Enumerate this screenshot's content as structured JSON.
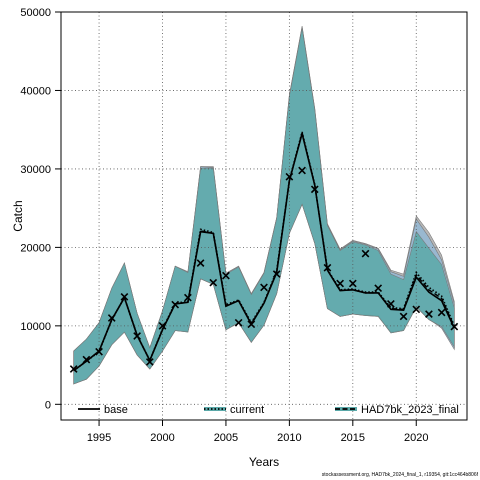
{
  "chart_data": {
    "type": "line",
    "xlabel": "Years",
    "ylabel": "Catch",
    "xlim": [
      1992,
      2024
    ],
    "ylim": [
      -2000,
      50000
    ],
    "x_ticks": [
      1995,
      2000,
      2005,
      2010,
      2015,
      2020
    ],
    "y_ticks": [
      0,
      10000,
      20000,
      30000,
      40000,
      50000
    ],
    "grid": true,
    "legend_position": "bottom",
    "legend": [
      {
        "label": "base",
        "style": "solid"
      },
      {
        "label": "current",
        "style": "dotted"
      },
      {
        "label": "HAD7bk_2023_final",
        "style": "dashed"
      }
    ],
    "x": [
      1993,
      1994,
      1995,
      1996,
      1997,
      1998,
      1999,
      2000,
      2001,
      2002,
      2003,
      2004,
      2005,
      2006,
      2007,
      2008,
      2009,
      2010,
      2011,
      2012,
      2013,
      2014,
      2015,
      2016,
      2017,
      2018,
      2019,
      2020,
      2021,
      2022,
      2023
    ],
    "series": [
      {
        "name": "base",
        "values": [
          4300,
          5500,
          6800,
          10800,
          13600,
          8800,
          5600,
          9500,
          12800,
          13000,
          22000,
          21800,
          12500,
          13200,
          10200,
          12900,
          16800,
          28500,
          34500,
          27900,
          17100,
          14500,
          14600,
          14200,
          14200,
          12100,
          12000,
          16200,
          14300,
          13200,
          9700
        ],
        "lower": [
          2600,
          3200,
          4900,
          7600,
          9200,
          6300,
          4500,
          6800,
          9400,
          9200,
          16000,
          15300,
          9500,
          10400,
          7900,
          10100,
          14100,
          21800,
          25500,
          20500,
          12200,
          11200,
          11500,
          11300,
          11200,
          9100,
          9400,
          12400,
          10800,
          9900,
          7300
        ],
        "upper": [
          6800,
          8300,
          10400,
          14800,
          18000,
          11600,
          7200,
          11900,
          17600,
          16800,
          30100,
          30100,
          16600,
          17500,
          14000,
          16700,
          23700,
          39300,
          48000,
          37500,
          22800,
          19600,
          20700,
          20300,
          19600,
          16600,
          15900,
          22000,
          19900,
          17800,
          12300
        ],
        "band_color": "#5aa8a8"
      },
      {
        "name": "current",
        "values": [
          4300,
          5500,
          6700,
          10800,
          13600,
          8800,
          5600,
          9600,
          12900,
          13100,
          22300,
          21900,
          12700,
          13300,
          10400,
          13000,
          17000,
          28600,
          34700,
          28000,
          17200,
          14600,
          14700,
          14300,
          14300,
          12300,
          12200,
          16800,
          14900,
          13800,
          10000
        ],
        "lower": [
          2600,
          3200,
          4900,
          7600,
          9200,
          6300,
          4500,
          6800,
          9400,
          9300,
          16000,
          15300,
          9500,
          10400,
          7900,
          10100,
          14100,
          21800,
          25500,
          20500,
          12200,
          11200,
          11500,
          11400,
          11300,
          9200,
          9500,
          12500,
          10900,
          9700,
          7000
        ],
        "upper": [
          6800,
          8300,
          10400,
          14800,
          18000,
          11600,
          7200,
          11900,
          17600,
          16900,
          30300,
          30200,
          16700,
          17600,
          14100,
          16800,
          23800,
          39400,
          48100,
          37600,
          22900,
          19700,
          20800,
          20400,
          19800,
          16900,
          16300,
          23600,
          21300,
          18400,
          12800
        ],
        "band_color": "#8fb8d8"
      },
      {
        "name": "HAD7bk_2023_final",
        "values": [
          4300,
          5500,
          6800,
          10800,
          13600,
          8800,
          5600,
          9500,
          12800,
          13000,
          22100,
          21800,
          12600,
          13200,
          10300,
          12900,
          16900,
          28500,
          34600,
          27900,
          17100,
          14500,
          14600,
          14200,
          14200,
          12200,
          12100,
          16500,
          14600,
          13500,
          9900
        ],
        "lower": [
          2600,
          3200,
          4900,
          7600,
          9200,
          6300,
          4500,
          6800,
          9400,
          9200,
          16000,
          15300,
          9500,
          10400,
          7900,
          10100,
          14100,
          21800,
          25500,
          20500,
          12200,
          11200,
          11500,
          11300,
          11200,
          9100,
          9400,
          12400,
          10800,
          9800,
          7200
        ],
        "upper": [
          6800,
          8300,
          10400,
          14800,
          18000,
          11600,
          7200,
          11900,
          17600,
          16800,
          30300,
          30300,
          16700,
          17600,
          14100,
          16800,
          23800,
          39500,
          48200,
          37700,
          23000,
          19800,
          20900,
          20500,
          19900,
          17100,
          16600,
          24000,
          21900,
          19000,
          13100
        ],
        "band_color": "#a0a0a0"
      }
    ],
    "observed": {
      "x": [
        1993,
        1994,
        1995,
        1996,
        1997,
        1998,
        1999,
        2000,
        2001,
        2002,
        2003,
        2004,
        2005,
        2006,
        2007,
        2008,
        2009,
        2010,
        2011,
        2012,
        2013,
        2014,
        2015,
        2016,
        2017,
        2018,
        2019,
        2020,
        2021,
        2022,
        2023
      ],
      "values": [
        4500,
        5700,
        6700,
        11000,
        13700,
        8700,
        5400,
        10000,
        12700,
        13600,
        18000,
        15500,
        16400,
        10400,
        10200,
        14900,
        16600,
        29000,
        29800,
        27400,
        17400,
        15400,
        15400,
        19200,
        14800,
        12800,
        11200,
        12100,
        11500,
        11700,
        9900
      ]
    }
  },
  "footer_text": "stockassessment.org, HAD7bk_2024_final_1, r19354, git:1cc464b806f"
}
